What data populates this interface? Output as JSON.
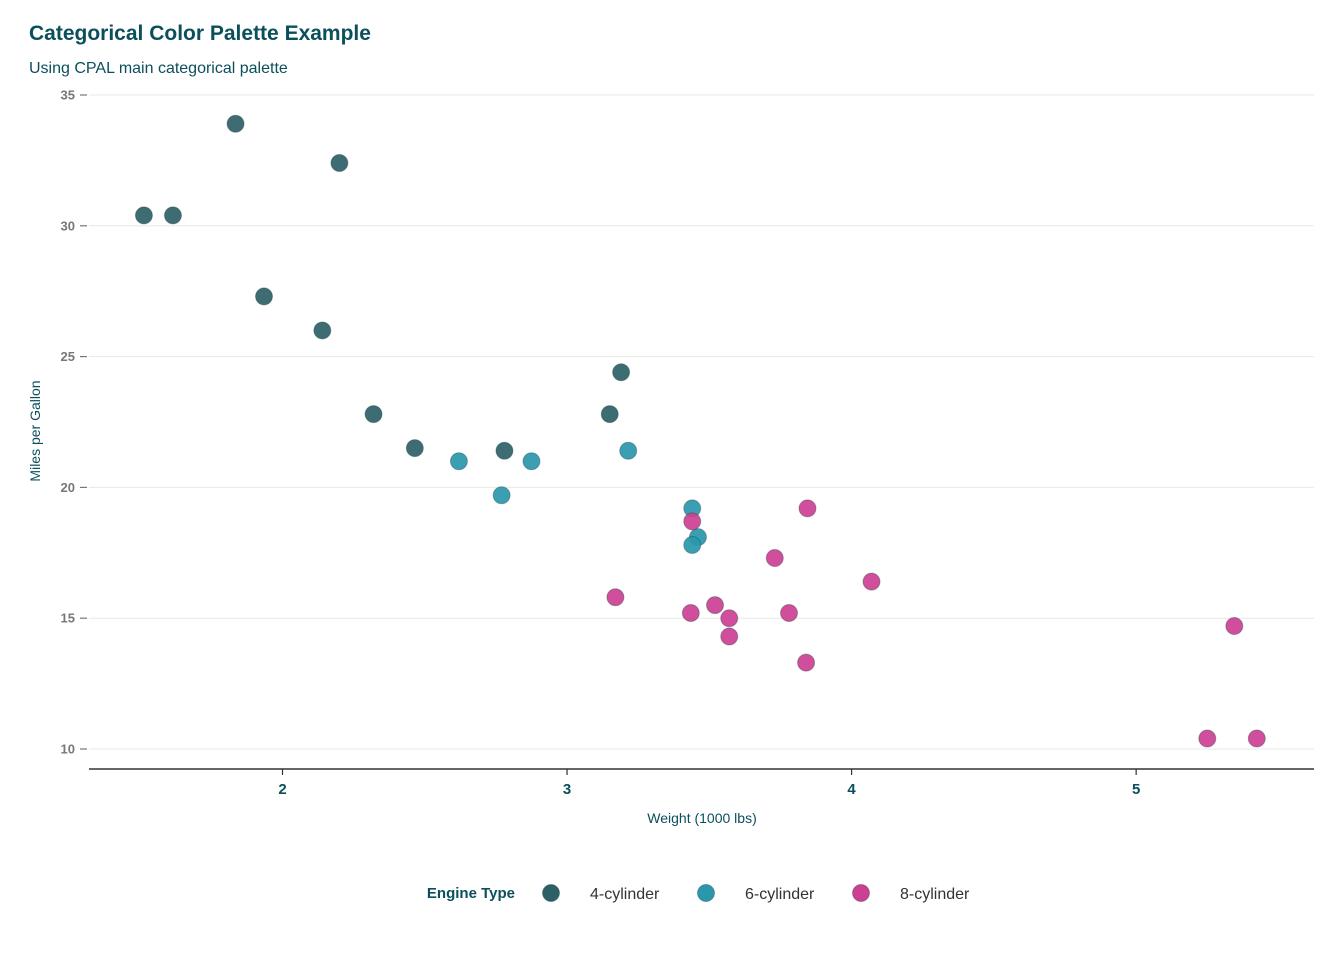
{
  "chart_data": {
    "type": "scatter",
    "title": "Categorical Color Palette Example",
    "subtitle": "Using CPAL main categorical palette",
    "xlabel": "Weight (1000 lbs)",
    "ylabel": "Miles per Gallon",
    "xlim": [
      1.32,
      5.625
    ],
    "ylim": [
      10,
      35
    ],
    "xticks": [
      2,
      3,
      4,
      5
    ],
    "yticks": [
      10,
      15,
      20,
      25,
      30,
      35
    ],
    "grid": "horizontal",
    "legend_position": "bottom",
    "legend_title": "Engine Type",
    "series": [
      {
        "name": "4-cylinder",
        "color": "#2d5f66",
        "points": [
          {
            "x": 1.835,
            "y": 33.9
          },
          {
            "x": 2.2,
            "y": 32.4
          },
          {
            "x": 1.513,
            "y": 30.4
          },
          {
            "x": 1.615,
            "y": 30.4
          },
          {
            "x": 1.935,
            "y": 27.3
          },
          {
            "x": 2.14,
            "y": 26.0
          },
          {
            "x": 3.19,
            "y": 24.4
          },
          {
            "x": 2.32,
            "y": 22.8
          },
          {
            "x": 3.15,
            "y": 22.8
          },
          {
            "x": 2.465,
            "y": 21.5
          },
          {
            "x": 2.78,
            "y": 21.4
          }
        ]
      },
      {
        "name": "6-cylinder",
        "color": "#2a97ac",
        "points": [
          {
            "x": 2.62,
            "y": 21.0
          },
          {
            "x": 2.875,
            "y": 21.0
          },
          {
            "x": 3.215,
            "y": 21.4
          },
          {
            "x": 2.77,
            "y": 19.7
          },
          {
            "x": 3.44,
            "y": 19.2
          },
          {
            "x": 3.46,
            "y": 18.1
          },
          {
            "x": 3.44,
            "y": 17.8
          }
        ]
      },
      {
        "name": "8-cylinder",
        "color": "#cc3f92",
        "points": [
          {
            "x": 3.44,
            "y": 18.7
          },
          {
            "x": 3.845,
            "y": 19.2
          },
          {
            "x": 3.73,
            "y": 17.3
          },
          {
            "x": 4.07,
            "y": 16.4
          },
          {
            "x": 3.17,
            "y": 15.8
          },
          {
            "x": 3.52,
            "y": 15.5
          },
          {
            "x": 3.435,
            "y": 15.2
          },
          {
            "x": 3.78,
            "y": 15.2
          },
          {
            "x": 3.57,
            "y": 15.0
          },
          {
            "x": 3.57,
            "y": 14.3
          },
          {
            "x": 3.84,
            "y": 13.3
          },
          {
            "x": 5.345,
            "y": 14.7
          },
          {
            "x": 5.25,
            "y": 10.4
          },
          {
            "x": 5.424,
            "y": 10.4
          }
        ]
      }
    ]
  }
}
